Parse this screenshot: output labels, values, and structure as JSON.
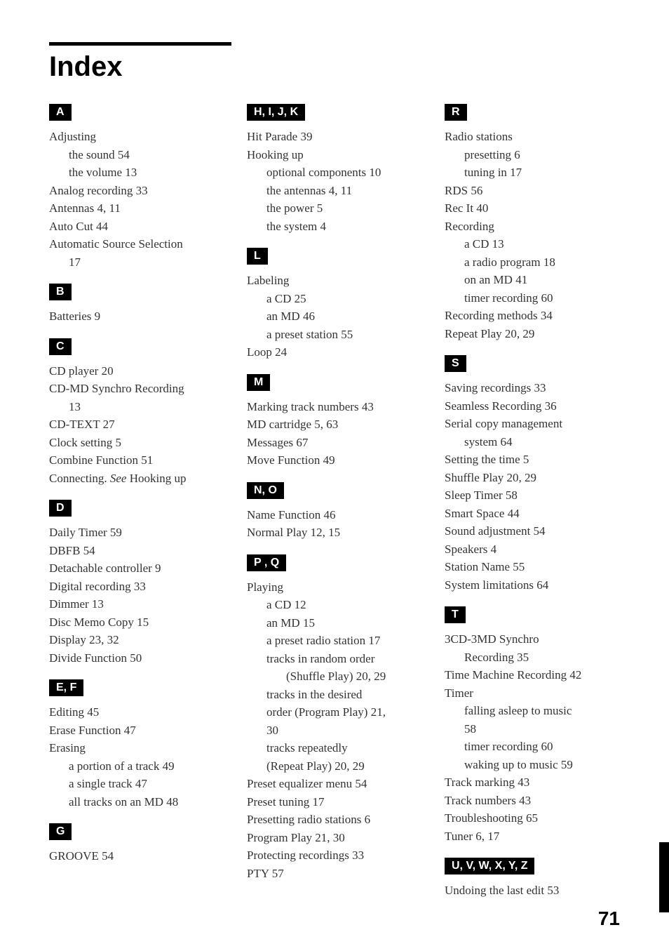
{
  "title": "Index",
  "pageNumber": "71",
  "columns": [
    {
      "sections": [
        {
          "label": "A",
          "entries": [
            {
              "text": "Adjusting",
              "level": 0
            },
            {
              "text": "the sound  54",
              "level": 1
            },
            {
              "text": "the volume  13",
              "level": 1
            },
            {
              "text": "Analog recording  33",
              "level": 0
            },
            {
              "text": "Antennas  4, 11",
              "level": 0
            },
            {
              "text": "Auto Cut  44",
              "level": 0
            },
            {
              "text": "Automatic Source Selection",
              "level": 0
            },
            {
              "text": "17",
              "level": 1
            }
          ]
        },
        {
          "label": "B",
          "entries": [
            {
              "text": "Batteries  9",
              "level": 0
            }
          ]
        },
        {
          "label": "C",
          "entries": [
            {
              "text": "CD player 20",
              "level": 0
            },
            {
              "text": "CD-MD Synchro Recording",
              "level": 0
            },
            {
              "text": "13",
              "level": 1
            },
            {
              "text": "CD-TEXT  27",
              "level": 0
            },
            {
              "text": "Clock setting 5",
              "level": 0
            },
            {
              "text": "Combine Function  51",
              "level": 0
            },
            {
              "text": "Connecting. ",
              "italic": "See",
              "after": " Hooking up",
              "level": 0
            }
          ]
        },
        {
          "label": "D",
          "entries": [
            {
              "text": "Daily Timer  59",
              "level": 0
            },
            {
              "text": "DBFB  54",
              "level": 0
            },
            {
              "text": "Detachable controller  9",
              "level": 0
            },
            {
              "text": "Digital recording  33",
              "level": 0
            },
            {
              "text": "Dimmer  13",
              "level": 0
            },
            {
              "text": "Disc Memo Copy  15",
              "level": 0
            },
            {
              "text": "Display  23, 32",
              "level": 0
            },
            {
              "text": "Divide Function  50",
              "level": 0
            }
          ]
        },
        {
          "label": "E, F",
          "entries": [
            {
              "text": "Editing  45",
              "level": 0
            },
            {
              "text": "Erase Function  47",
              "level": 0
            },
            {
              "text": "Erasing",
              "level": 0
            },
            {
              "text": "a portion of a track  49",
              "level": 1
            },
            {
              "text": "a single track  47",
              "level": 1
            },
            {
              "text": "all tracks on an MD  48",
              "level": 1
            }
          ]
        },
        {
          "label": "G",
          "entries": [
            {
              "text": "GROOVE  54",
              "level": 0
            }
          ]
        }
      ]
    },
    {
      "sections": [
        {
          "label": "H, I, J, K",
          "entries": [
            {
              "text": "Hit Parade  39",
              "level": 0
            },
            {
              "text": "Hooking up",
              "level": 0
            },
            {
              "text": "optional components  10",
              "level": 1
            },
            {
              "text": "the antennas  4, 11",
              "level": 1
            },
            {
              "text": "the power  5",
              "level": 1
            },
            {
              "text": "the system  4",
              "level": 1
            }
          ]
        },
        {
          "label": "L",
          "entries": [
            {
              "text": "Labeling",
              "level": 0
            },
            {
              "text": "a CD  25",
              "level": 1
            },
            {
              "text": "an MD  46",
              "level": 1
            },
            {
              "text": "a preset station  55",
              "level": 1
            },
            {
              "text": "Loop  24",
              "level": 0
            }
          ]
        },
        {
          "label": "M",
          "entries": [
            {
              "text": "Marking track numbers  43",
              "level": 0
            },
            {
              "text": "MD cartridge  5, 63",
              "level": 0
            },
            {
              "text": "Messages  67",
              "level": 0
            },
            {
              "text": "Move Function  49",
              "level": 0
            }
          ]
        },
        {
          "label": "N, O",
          "entries": [
            {
              "text": "Name Function  46",
              "level": 0
            },
            {
              "text": "Normal Play  12, 15",
              "level": 0
            }
          ]
        },
        {
          "label": "P , Q",
          "entries": [
            {
              "text": "Playing",
              "level": 0
            },
            {
              "text": "a CD  12",
              "level": 1
            },
            {
              "text": "an MD  15",
              "level": 1
            },
            {
              "text": "a preset radio station  17",
              "level": 1
            },
            {
              "text": "tracks in random order",
              "level": 1
            },
            {
              "text": "(Shuffle Play)  20, 29",
              "level": 2
            },
            {
              "text": "tracks in the desired",
              "level": 1
            },
            {
              "text": "order (Program Play)  21,",
              "level": 1
            },
            {
              "text": "30",
              "level": 1
            },
            {
              "text": "tracks repeatedly",
              "level": 1
            },
            {
              "text": "(Repeat Play)  20, 29",
              "level": 1
            },
            {
              "text": "Preset equalizer menu  54",
              "level": 0
            },
            {
              "text": "Preset tuning  17",
              "level": 0
            },
            {
              "text": "Presetting radio stations  6",
              "level": 0
            },
            {
              "text": "Program Play  21, 30",
              "level": 0
            },
            {
              "text": "Protecting recordings  33",
              "level": 0
            },
            {
              "text": "PTY  57",
              "level": 0
            }
          ]
        }
      ]
    },
    {
      "sections": [
        {
          "label": "R",
          "entries": [
            {
              "text": "Radio stations",
              "level": 0
            },
            {
              "text": "presetting  6",
              "level": 1
            },
            {
              "text": "tuning in  17",
              "level": 1
            },
            {
              "text": "RDS  56",
              "level": 0
            },
            {
              "text": "Rec It  40",
              "level": 0
            },
            {
              "text": "Recording",
              "level": 0
            },
            {
              "text": "a CD  13",
              "level": 1
            },
            {
              "text": "a radio program 18",
              "level": 1
            },
            {
              "text": "on an MD  41",
              "level": 1
            },
            {
              "text": "timer recording  60",
              "level": 1
            },
            {
              "text": "Recording methods  34",
              "level": 0
            },
            {
              "text": "Repeat Play  20, 29",
              "level": 0
            }
          ]
        },
        {
          "label": "S",
          "entries": [
            {
              "text": "Saving recordings  33",
              "level": 0
            },
            {
              "text": "Seamless Recording  36",
              "level": 0
            },
            {
              "text": "Serial copy management",
              "level": 0
            },
            {
              "text": "system  64",
              "level": 1
            },
            {
              "text": "Setting the time  5",
              "level": 0
            },
            {
              "text": "Shuffle Play  20, 29",
              "level": 0
            },
            {
              "text": "Sleep Timer  58",
              "level": 0
            },
            {
              "text": "Smart Space  44",
              "level": 0
            },
            {
              "text": "Sound adjustment  54",
              "level": 0
            },
            {
              "text": "Speakers  4",
              "level": 0
            },
            {
              "text": "Station Name  55",
              "level": 0
            },
            {
              "text": "System limitations  64",
              "level": 0
            }
          ]
        },
        {
          "label": "T",
          "entries": [
            {
              "text": "3CD-3MD Synchro",
              "level": 0
            },
            {
              "text": "Recording  35",
              "level": 1
            },
            {
              "text": "Time Machine Recording 42",
              "level": 0
            },
            {
              "text": "Timer",
              "level": 0
            },
            {
              "text": "falling asleep to music",
              "level": 1
            },
            {
              "text": "58",
              "level": 1
            },
            {
              "text": "timer recording  60",
              "level": 1
            },
            {
              "text": "waking up to music  59",
              "level": 1
            },
            {
              "text": "Track marking  43",
              "level": 0
            },
            {
              "text": "Track numbers 43",
              "level": 0
            },
            {
              "text": "Troubleshooting  65",
              "level": 0
            },
            {
              "text": "Tuner  6, 17",
              "level": 0
            }
          ]
        },
        {
          "label": "U, V, W, X, Y, Z",
          "entries": [
            {
              "text": "Undoing the last edit  53",
              "level": 0
            }
          ]
        }
      ]
    }
  ]
}
